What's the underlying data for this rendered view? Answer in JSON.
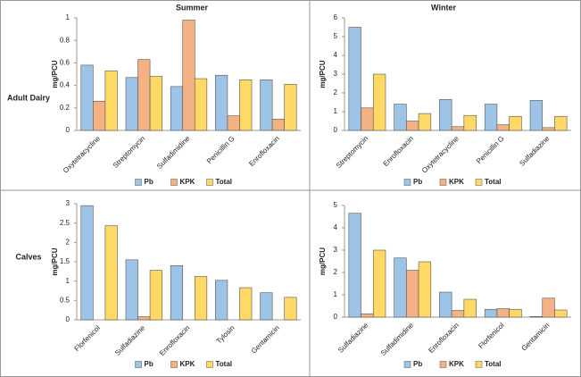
{
  "column_titles": [
    "Summer",
    "Winter"
  ],
  "row_titles": [
    "Adult Dairy",
    "Calves"
  ],
  "chart_data": [
    {
      "type": "bar",
      "y_label": "mg/PCU",
      "categories": [
        "Oxytetracycline",
        "Streptomycin",
        "Sulfadimidine",
        "Penicillin G",
        "Enrofloxacin"
      ],
      "series": [
        {
          "name": "Pb",
          "color": "#9dc3e6",
          "values": [
            0.58,
            0.47,
            0.39,
            0.49,
            0.45
          ]
        },
        {
          "name": "KPK",
          "color": "#f4b183",
          "values": [
            0.26,
            0.63,
            0.98,
            0.13,
            0.1
          ]
        },
        {
          "name": "Total",
          "color": "#ffd966",
          "values": [
            0.53,
            0.48,
            0.46,
            0.45,
            0.41
          ]
        }
      ],
      "ylim": [
        0,
        1
      ],
      "yticks": [
        0,
        0.2,
        0.4,
        0.6,
        0.8,
        1
      ],
      "legend": "bottom"
    },
    {
      "type": "bar",
      "y_label": "mg/PCU",
      "categories": [
        "Streptomycin",
        "Enrofloxacin",
        "Oxytetracycline",
        "Penicillin G",
        "Sulfadiazine"
      ],
      "series": [
        {
          "name": "Pb",
          "color": "#9dc3e6",
          "values": [
            5.5,
            1.4,
            1.65,
            1.4,
            1.6
          ]
        },
        {
          "name": "KPK",
          "color": "#f4b183",
          "values": [
            1.2,
            0.5,
            0.2,
            0.3,
            0.15
          ]
        },
        {
          "name": "Total",
          "color": "#ffd966",
          "values": [
            3.0,
            0.9,
            0.8,
            0.75,
            0.75
          ]
        }
      ],
      "ylim": [
        0,
        6
      ],
      "yticks": [
        0,
        1,
        2,
        3,
        4,
        5,
        6
      ],
      "legend": "bottom"
    },
    {
      "type": "bar",
      "y_label": "mg/PCU",
      "categories": [
        "Florfenicol",
        "Sulfadiazine",
        "Enrofloxacin",
        "Tylosin",
        "Gentamicin"
      ],
      "series": [
        {
          "name": "Pb",
          "color": "#9dc3e6",
          "values": [
            2.95,
            1.55,
            1.4,
            1.02,
            0.7
          ]
        },
        {
          "name": "KPK",
          "color": "#f4b183",
          "values": [
            0,
            0.08,
            0,
            0,
            0
          ]
        },
        {
          "name": "Total",
          "color": "#ffd966",
          "values": [
            2.43,
            1.28,
            1.12,
            0.83,
            0.58
          ]
        }
      ],
      "ylim": [
        0,
        3
      ],
      "yticks": [
        0,
        0.5,
        1,
        1.5,
        2,
        2.5,
        3
      ],
      "legend": "bottom"
    },
    {
      "type": "bar",
      "y_label": "mg/PCU",
      "categories": [
        "Sulfadiazine",
        "Sulfadimidine",
        "Enrofloxacin",
        "Florfenicol",
        "Gentamicin"
      ],
      "series": [
        {
          "name": "Pb",
          "color": "#9dc3e6",
          "values": [
            4.65,
            2.65,
            1.12,
            0.35,
            0.03
          ]
        },
        {
          "name": "KPK",
          "color": "#f4b183",
          "values": [
            0.15,
            2.1,
            0.3,
            0.38,
            0.85
          ]
        },
        {
          "name": "Total",
          "color": "#ffd966",
          "values": [
            3.0,
            2.48,
            0.8,
            0.35,
            0.32
          ]
        }
      ],
      "ylim": [
        0,
        5
      ],
      "yticks": [
        0,
        1,
        2,
        3,
        4,
        5
      ],
      "legend": "bottom"
    }
  ]
}
